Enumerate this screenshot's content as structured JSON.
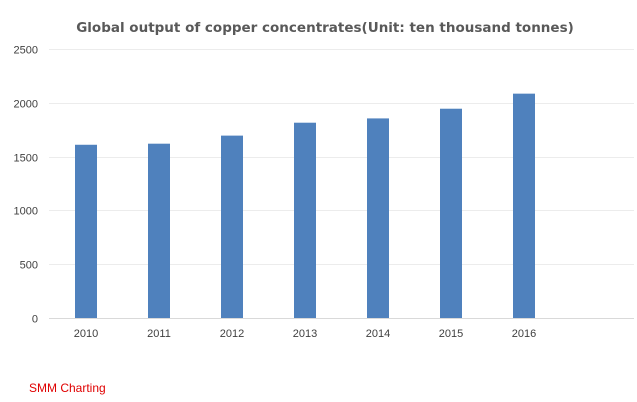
{
  "source_label": "SMM Charting",
  "colors": {
    "bar": "#4f81bd",
    "grid": "#ececec",
    "axis": "#d9d9d9",
    "source": "#e00000"
  },
  "chart_data": {
    "type": "bar",
    "title": "Global output of copper concentrates(Unit: ten thousand tonnes)",
    "xlabel": "",
    "ylabel": "",
    "categories": [
      "2010",
      "2011",
      "2012",
      "2013",
      "2014",
      "2015",
      "2016"
    ],
    "values": [
      1610,
      1620,
      1695,
      1815,
      1855,
      1945,
      2085
    ],
    "ylim": [
      0,
      2500
    ],
    "yticks": [
      0,
      500,
      1000,
      1500,
      2000,
      2500
    ],
    "grid": true,
    "legend": "none"
  }
}
